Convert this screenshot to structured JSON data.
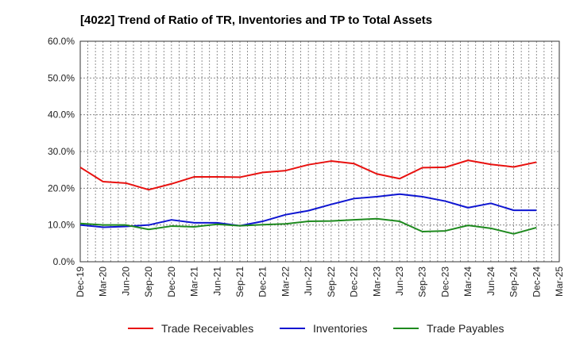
{
  "chart_data": {
    "type": "line",
    "title": "[4022]  Trend of Ratio of TR, Inventories and TP to Total Assets",
    "xlabel": "",
    "ylabel": "",
    "ylim": [
      0,
      60
    ],
    "y_ticks": [
      "0.0%",
      "10.0%",
      "20.0%",
      "30.0%",
      "40.0%",
      "50.0%",
      "60.0%"
    ],
    "x_tick_labels": [
      "Dec-19",
      "Mar-20",
      "Jun-20",
      "Sep-20",
      "Dec-20",
      "Mar-21",
      "Jun-21",
      "Sep-21",
      "Dec-21",
      "Mar-22",
      "Jun-22",
      "Sep-22",
      "Dec-22",
      "Mar-23",
      "Jun-23",
      "Sep-23",
      "Dec-23",
      "Mar-24",
      "Jun-24",
      "Sep-24",
      "Dec-24",
      "Mar-25"
    ],
    "categories": [
      "Dec-19",
      "Mar-20",
      "Jun-20",
      "Sep-20",
      "Dec-20",
      "Mar-21",
      "Jun-21",
      "Sep-21",
      "Dec-21",
      "Mar-22",
      "Jun-22",
      "Sep-22",
      "Dec-22",
      "Mar-23",
      "Jun-23",
      "Sep-23",
      "Dec-23",
      "Mar-24",
      "Jun-24",
      "Sep-24",
      "Dec-24"
    ],
    "grid": true,
    "legend_position": "bottom",
    "series": [
      {
        "name": "Trade Receivables",
        "color": "#e8110f",
        "values": [
          25.7,
          21.8,
          21.4,
          19.6,
          21.2,
          23.1,
          23.1,
          23.0,
          24.3,
          24.8,
          26.4,
          27.4,
          26.7,
          23.9,
          22.6,
          25.6,
          25.7,
          27.6,
          26.5,
          25.8,
          27.1
        ]
      },
      {
        "name": "Inventories",
        "color": "#0e15d1",
        "values": [
          10.0,
          9.4,
          9.6,
          10.0,
          11.4,
          10.6,
          10.6,
          9.8,
          11.0,
          12.8,
          13.9,
          15.6,
          17.2,
          17.7,
          18.4,
          17.7,
          16.5,
          14.7,
          15.9,
          14.0,
          14.0
        ]
      },
      {
        "name": "Trade Payables",
        "color": "#1e8a1e",
        "values": [
          10.4,
          10.0,
          10.0,
          8.8,
          9.7,
          9.5,
          10.2,
          9.8,
          10.1,
          10.3,
          11.0,
          11.1,
          11.4,
          11.7,
          11.0,
          8.2,
          8.4,
          9.9,
          9.1,
          7.6,
          9.3
        ]
      }
    ]
  }
}
